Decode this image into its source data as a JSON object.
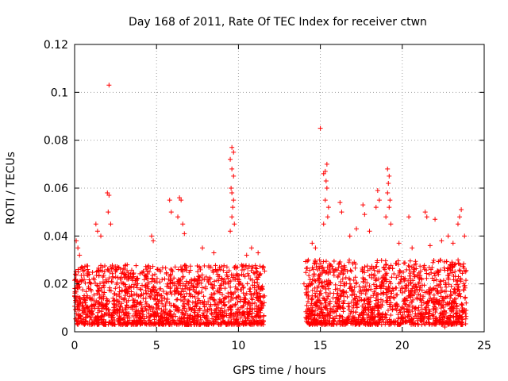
{
  "chart_data": {
    "type": "scatter",
    "title": "Day 168 of 2011, Rate Of TEC Index for receiver ctwn",
    "xlabel": "GPS time / hours",
    "ylabel": "ROTI / TECUs",
    "xlim": [
      0,
      25
    ],
    "ylim": [
      0,
      0.12
    ],
    "x_ticks": [
      0,
      5,
      10,
      15,
      20,
      25
    ],
    "y_ticks": [
      0,
      0.02,
      0.04,
      0.06,
      0.08,
      0.1,
      0.12
    ],
    "x_tick_labels": [
      "0",
      "5",
      "10",
      "15",
      "20",
      "25"
    ],
    "y_tick_labels": [
      "0",
      "0.02",
      "0.04",
      "0.06",
      "0.08",
      "0.1",
      "0.12"
    ],
    "grid": true,
    "marker": "+",
    "colors": {
      "points": "#ff0000",
      "grid": "#a0a0a0",
      "frame": "#000000"
    },
    "series": [
      {
        "name": "ROTI",
        "points": [
          [
            2.1,
            0.103
          ],
          [
            15.0,
            0.085
          ],
          [
            9.6,
            0.077
          ],
          [
            9.7,
            0.075
          ],
          [
            9.5,
            0.072
          ],
          [
            9.6,
            0.068
          ],
          [
            9.7,
            0.065
          ],
          [
            9.55,
            0.06
          ],
          [
            9.6,
            0.058
          ],
          [
            9.7,
            0.055
          ],
          [
            9.65,
            0.052
          ],
          [
            9.6,
            0.048
          ],
          [
            9.75,
            0.045
          ],
          [
            9.5,
            0.042
          ],
          [
            15.4,
            0.07
          ],
          [
            15.3,
            0.067
          ],
          [
            15.2,
            0.066
          ],
          [
            15.35,
            0.063
          ],
          [
            15.4,
            0.06
          ],
          [
            15.3,
            0.055
          ],
          [
            15.5,
            0.052
          ],
          [
            15.45,
            0.048
          ],
          [
            15.2,
            0.045
          ],
          [
            19.1,
            0.068
          ],
          [
            19.2,
            0.065
          ],
          [
            19.15,
            0.062
          ],
          [
            19.1,
            0.058
          ],
          [
            19.25,
            0.055
          ],
          [
            19.2,
            0.052
          ],
          [
            19.0,
            0.048
          ],
          [
            19.3,
            0.045
          ],
          [
            2.0,
            0.058
          ],
          [
            2.1,
            0.057
          ],
          [
            2.05,
            0.05
          ],
          [
            2.2,
            0.045
          ],
          [
            6.4,
            0.056
          ],
          [
            6.5,
            0.055
          ],
          [
            5.8,
            0.055
          ],
          [
            5.9,
            0.05
          ],
          [
            6.3,
            0.048
          ],
          [
            6.6,
            0.045
          ],
          [
            18.5,
            0.059
          ],
          [
            18.6,
            0.055
          ],
          [
            18.4,
            0.052
          ],
          [
            17.6,
            0.053
          ],
          [
            17.7,
            0.049
          ],
          [
            16.2,
            0.054
          ],
          [
            16.3,
            0.05
          ],
          [
            21.4,
            0.05
          ],
          [
            21.5,
            0.048
          ],
          [
            20.4,
            0.048
          ],
          [
            22.0,
            0.047
          ],
          [
            23.6,
            0.051
          ],
          [
            23.5,
            0.048
          ],
          [
            23.4,
            0.045
          ],
          [
            0.1,
            0.038
          ],
          [
            0.2,
            0.035
          ],
          [
            0.3,
            0.032
          ],
          [
            1.3,
            0.045
          ],
          [
            1.4,
            0.042
          ],
          [
            1.6,
            0.04
          ],
          [
            4.7,
            0.04
          ],
          [
            4.8,
            0.038
          ],
          [
            6.7,
            0.041
          ],
          [
            7.8,
            0.035
          ],
          [
            8.5,
            0.033
          ],
          [
            10.5,
            0.032
          ],
          [
            10.8,
            0.035
          ],
          [
            11.2,
            0.033
          ],
          [
            14.5,
            0.037
          ],
          [
            14.7,
            0.035
          ],
          [
            16.8,
            0.04
          ],
          [
            17.2,
            0.043
          ],
          [
            18.0,
            0.042
          ],
          [
            19.8,
            0.037
          ],
          [
            20.6,
            0.035
          ],
          [
            21.7,
            0.036
          ],
          [
            22.4,
            0.038
          ],
          [
            22.8,
            0.04
          ],
          [
            23.1,
            0.037
          ],
          [
            23.8,
            0.04
          ],
          [
            0.0,
            0.015
          ],
          [
            0.5,
            0.012
          ],
          [
            1.0,
            0.02
          ],
          [
            1.5,
            0.018
          ],
          [
            2.5,
            0.025
          ],
          [
            3.0,
            0.02
          ],
          [
            3.5,
            0.015
          ],
          [
            4.0,
            0.012
          ],
          [
            4.5,
            0.018
          ],
          [
            5.0,
            0.01
          ],
          [
            5.5,
            0.014
          ],
          [
            6.0,
            0.02
          ],
          [
            7.0,
            0.016
          ],
          [
            7.5,
            0.012
          ],
          [
            8.0,
            0.018
          ],
          [
            9.0,
            0.022
          ],
          [
            10.0,
            0.02
          ],
          [
            10.5,
            0.016
          ],
          [
            11.0,
            0.012
          ],
          [
            11.5,
            0.015
          ],
          [
            14.0,
            0.02
          ],
          [
            14.5,
            0.015
          ],
          [
            15.0,
            0.012
          ],
          [
            15.5,
            0.018
          ],
          [
            16.0,
            0.014
          ],
          [
            16.5,
            0.02
          ],
          [
            17.0,
            0.01
          ],
          [
            17.5,
            0.016
          ],
          [
            18.0,
            0.012
          ],
          [
            19.0,
            0.018
          ],
          [
            19.5,
            0.014
          ],
          [
            20.0,
            0.01
          ],
          [
            20.5,
            0.016
          ],
          [
            21.0,
            0.02
          ],
          [
            21.5,
            0.012
          ],
          [
            22.0,
            0.018
          ],
          [
            22.5,
            0.014
          ],
          [
            23.0,
            0.01
          ],
          [
            23.5,
            0.016
          ],
          [
            23.9,
            0.012
          ],
          [
            0.2,
            0.003
          ],
          [
            2.8,
            0.003
          ],
          [
            5.2,
            0.004
          ],
          [
            8.8,
            0.003
          ],
          [
            15.3,
            0.003
          ],
          [
            17.9,
            0.004
          ],
          [
            20.8,
            0.003
          ],
          [
            22.6,
            0.002
          ]
        ],
        "dense_bands": [
          {
            "x_range": [
              0,
              11.6
            ],
            "y_range": [
              0.003,
              0.028
            ]
          },
          {
            "x_range": [
              14.1,
              23.9
            ],
            "y_range": [
              0.003,
              0.03
            ]
          }
        ]
      }
    ]
  }
}
